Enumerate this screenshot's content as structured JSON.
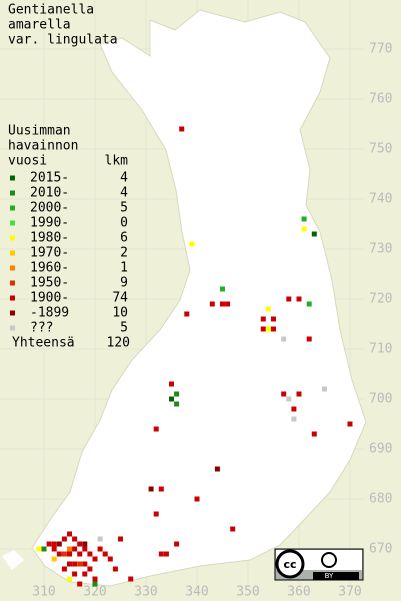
{
  "title": [
    "Gentianella",
    "amarella",
    "var. lingulata"
  ],
  "legend": {
    "header": [
      "Uusimman",
      "havainnon",
      "vuosi"
    ],
    "count_header": "lkm",
    "rows": [
      {
        "label": "2015-",
        "count": 4,
        "color": "#006600"
      },
      {
        "label": "2010-",
        "count": 4,
        "color": "#1a8c1a"
      },
      {
        "label": "2000-",
        "count": 5,
        "color": "#22b022"
      },
      {
        "label": "1990-",
        "count": 0,
        "color": "#44e044"
      },
      {
        "label": "1980-",
        "count": 6,
        "color": "#ffff00"
      },
      {
        "label": "1970-",
        "count": 2,
        "color": "#ffc800"
      },
      {
        "label": "1960-",
        "count": 1,
        "color": "#ff8000"
      },
      {
        "label": "1950-",
        "count": 9,
        "color": "#e03000"
      },
      {
        "label": "1900-",
        "count": 74,
        "color": "#cc0000"
      },
      {
        "label": "-1899",
        "count": 10,
        "color": "#8c0000"
      },
      {
        "label": "???",
        "count": 5,
        "color": "#c8c8c8"
      }
    ],
    "total_label": "Yhteensä",
    "total": 120
  },
  "grid": {
    "xticks": [
      310,
      320,
      330,
      340,
      350,
      360,
      370
    ],
    "yticks": [
      770,
      760,
      750,
      740,
      730,
      720,
      710,
      700,
      690,
      680,
      670
    ]
  },
  "observations": [
    {
      "x": 337,
      "y": 754,
      "class": 8
    },
    {
      "x": 361,
      "y": 736,
      "class": 2
    },
    {
      "x": 361,
      "y": 734,
      "class": 4
    },
    {
      "x": 363,
      "y": 733,
      "class": 0
    },
    {
      "x": 339,
      "y": 731,
      "class": 4
    },
    {
      "x": 345,
      "y": 722,
      "class": 2
    },
    {
      "x": 343,
      "y": 719,
      "class": 8
    },
    {
      "x": 345,
      "y": 719,
      "class": 8
    },
    {
      "x": 346,
      "y": 719,
      "class": 8
    },
    {
      "x": 338,
      "y": 717,
      "class": 8
    },
    {
      "x": 358,
      "y": 720,
      "class": 8
    },
    {
      "x": 360,
      "y": 720,
      "class": 8
    },
    {
      "x": 362,
      "y": 719,
      "class": 2
    },
    {
      "x": 354,
      "y": 718,
      "class": 4
    },
    {
      "x": 353,
      "y": 716,
      "class": 8
    },
    {
      "x": 355,
      "y": 716,
      "class": 8
    },
    {
      "x": 353,
      "y": 714,
      "class": 8
    },
    {
      "x": 354,
      "y": 714,
      "class": 4
    },
    {
      "x": 355,
      "y": 714,
      "class": 8
    },
    {
      "x": 357,
      "y": 712,
      "class": 10
    },
    {
      "x": 362,
      "y": 712,
      "class": 8
    },
    {
      "x": 335,
      "y": 703,
      "class": 8
    },
    {
      "x": 336,
      "y": 701,
      "class": 1
    },
    {
      "x": 335,
      "y": 700,
      "class": 0
    },
    {
      "x": 336,
      "y": 699,
      "class": 1
    },
    {
      "x": 357,
      "y": 701,
      "class": 8
    },
    {
      "x": 358,
      "y": 700,
      "class": 10
    },
    {
      "x": 365,
      "y": 702,
      "class": 10
    },
    {
      "x": 360,
      "y": 701,
      "class": 8
    },
    {
      "x": 359,
      "y": 698,
      "class": 8
    },
    {
      "x": 359,
      "y": 696,
      "class": 10
    },
    {
      "x": 363,
      "y": 693,
      "class": 8
    },
    {
      "x": 370,
      "y": 695,
      "class": 8
    },
    {
      "x": 332,
      "y": 694,
      "class": 8
    },
    {
      "x": 344,
      "y": 686,
      "class": 9
    },
    {
      "x": 331,
      "y": 682,
      "class": 9
    },
    {
      "x": 333,
      "y": 682,
      "class": 8
    },
    {
      "x": 340,
      "y": 680,
      "class": 8
    },
    {
      "x": 332,
      "y": 677,
      "class": 8
    },
    {
      "x": 347,
      "y": 674,
      "class": 8
    },
    {
      "x": 336,
      "y": 671,
      "class": 8
    },
    {
      "x": 333,
      "y": 669,
      "class": 8
    },
    {
      "x": 334,
      "y": 669,
      "class": 8
    },
    {
      "x": 325,
      "y": 672,
      "class": 8
    },
    {
      "x": 327,
      "y": 664,
      "class": 8
    },
    {
      "x": 309,
      "y": 670,
      "class": 4
    },
    {
      "x": 310,
      "y": 670,
      "class": 1
    },
    {
      "x": 311,
      "y": 671,
      "class": 8
    },
    {
      "x": 312,
      "y": 671,
      "class": 8
    },
    {
      "x": 313,
      "y": 671,
      "class": 9
    },
    {
      "x": 314,
      "y": 672,
      "class": 8
    },
    {
      "x": 315,
      "y": 673,
      "class": 8
    },
    {
      "x": 316,
      "y": 672,
      "class": 8
    },
    {
      "x": 317,
      "y": 671,
      "class": 8
    },
    {
      "x": 318,
      "y": 671,
      "class": 9
    },
    {
      "x": 312,
      "y": 670,
      "class": 8
    },
    {
      "x": 313,
      "y": 669,
      "class": 8
    },
    {
      "x": 314,
      "y": 669,
      "class": 7
    },
    {
      "x": 315,
      "y": 669,
      "class": 8
    },
    {
      "x": 316,
      "y": 670,
      "class": 8
    },
    {
      "x": 317,
      "y": 669,
      "class": 8
    },
    {
      "x": 318,
      "y": 670,
      "class": 8
    },
    {
      "x": 319,
      "y": 669,
      "class": 8
    },
    {
      "x": 320,
      "y": 668,
      "class": 8
    },
    {
      "x": 315,
      "y": 667,
      "class": 8
    },
    {
      "x": 316,
      "y": 667,
      "class": 8
    },
    {
      "x": 317,
      "y": 667,
      "class": 7
    },
    {
      "x": 318,
      "y": 667,
      "class": 8
    },
    {
      "x": 319,
      "y": 666,
      "class": 8
    },
    {
      "x": 321,
      "y": 670,
      "class": 8
    },
    {
      "x": 322,
      "y": 669,
      "class": 8
    },
    {
      "x": 314,
      "y": 666,
      "class": 8
    },
    {
      "x": 316,
      "y": 665,
      "class": 8
    },
    {
      "x": 318,
      "y": 665,
      "class": 8
    },
    {
      "x": 320,
      "y": 664,
      "class": 8
    },
    {
      "x": 323,
      "y": 668,
      "class": 8
    },
    {
      "x": 324,
      "y": 666,
      "class": 8
    },
    {
      "x": 315,
      "y": 664,
      "class": 4
    },
    {
      "x": 312,
      "y": 668,
      "class": 5
    },
    {
      "x": 315,
      "y": 670,
      "class": 6
    },
    {
      "x": 320,
      "y": 663,
      "class": 1
    },
    {
      "x": 317,
      "y": 663,
      "class": 8
    },
    {
      "x": 321,
      "y": 672,
      "class": 10
    }
  ],
  "badge": {
    "icon": "cc",
    "text": "BY"
  }
}
